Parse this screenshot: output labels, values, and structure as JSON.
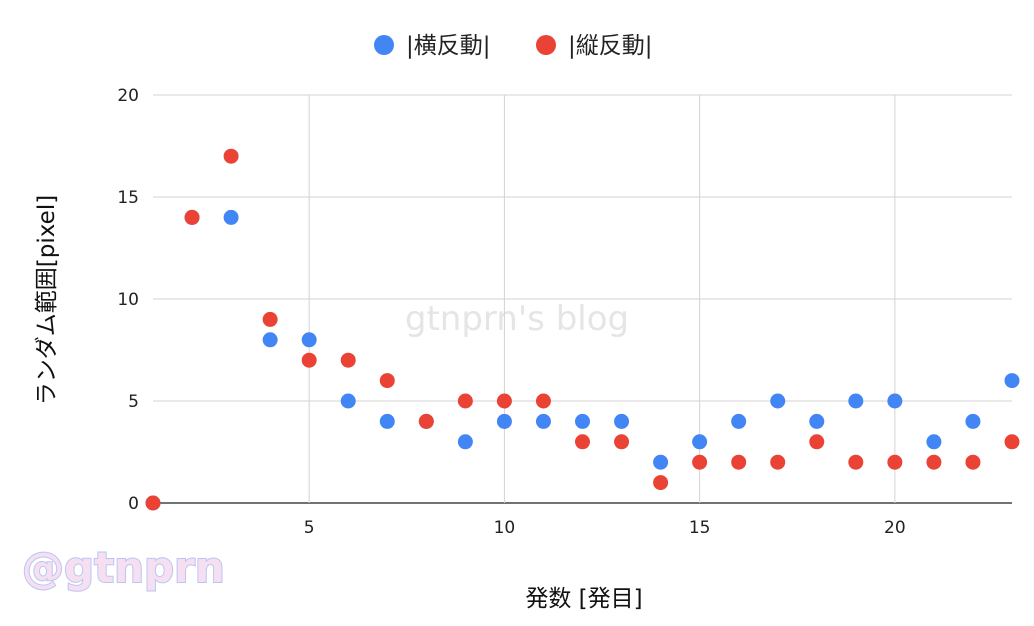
{
  "chart_data": {
    "type": "scatter",
    "xlabel": "発数 [発目]",
    "ylabel": "ランダム範囲[pixel]",
    "xlim": [
      1,
      23
    ],
    "ylim": [
      0,
      20
    ],
    "xticks": [
      5,
      10,
      15,
      20
    ],
    "yticks": [
      0,
      5,
      10,
      15,
      20
    ],
    "grid": true,
    "legend_position": "top-center",
    "series": [
      {
        "name": "|横反動|",
        "color": "#4285f4",
        "x": [
          1,
          2,
          3,
          4,
          5,
          6,
          7,
          8,
          9,
          10,
          11,
          12,
          13,
          14,
          15,
          16,
          17,
          18,
          19,
          20,
          21,
          22,
          23
        ],
        "y": [
          0,
          14,
          14,
          8,
          8,
          5,
          4,
          4,
          3,
          4,
          4,
          4,
          4,
          2,
          3,
          4,
          5,
          4,
          5,
          5,
          3,
          4,
          6
        ]
      },
      {
        "name": "|縦反動|",
        "color": "#ea4335",
        "x": [
          1,
          2,
          3,
          4,
          5,
          6,
          7,
          8,
          9,
          10,
          11,
          12,
          13,
          14,
          15,
          16,
          17,
          18,
          19,
          20,
          21,
          22,
          23
        ],
        "y": [
          0,
          14,
          17,
          9,
          7,
          7,
          6,
          4,
          5,
          5,
          5,
          3,
          3,
          1,
          2,
          2,
          2,
          3,
          2,
          2,
          2,
          2,
          3
        ]
      }
    ]
  },
  "watermark": "gtnprn's blog",
  "handle": "@gtnprn"
}
